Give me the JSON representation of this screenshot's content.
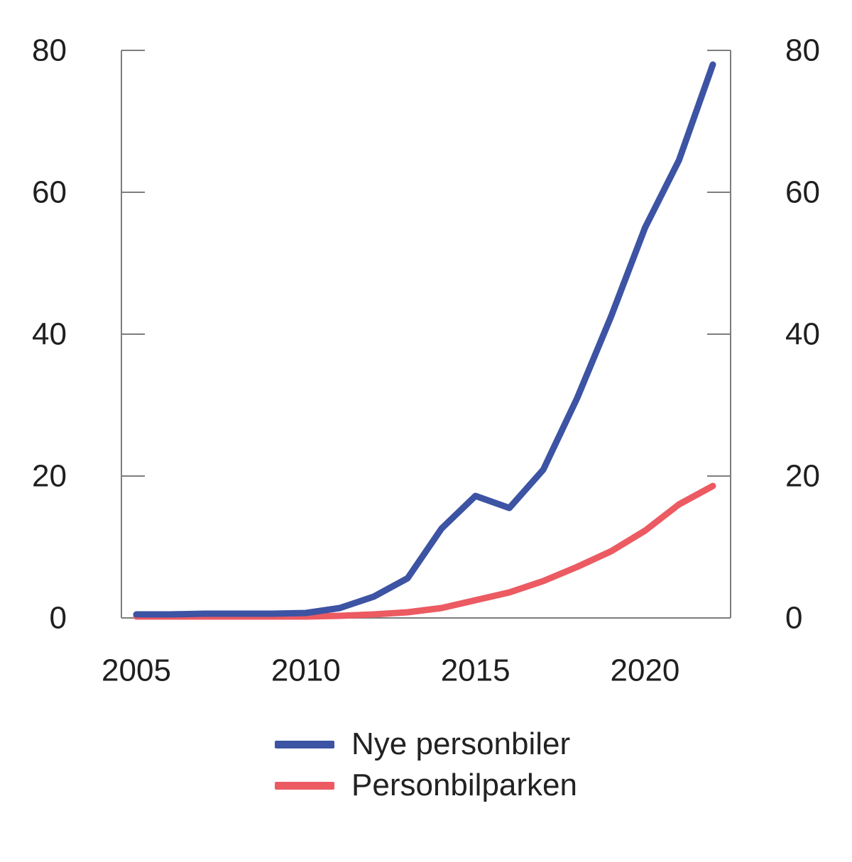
{
  "figure": {
    "background": "#ffffff"
  },
  "chart_data": {
    "type": "line",
    "title": "",
    "xlabel": "",
    "ylabel": "",
    "x": [
      2005,
      2006,
      2007,
      2008,
      2009,
      2010,
      2011,
      2012,
      2013,
      2014,
      2015,
      2016,
      2017,
      2018,
      2019,
      2020,
      2021,
      2022
    ],
    "series": [
      {
        "name": "Nye personbiler",
        "color": "#3D53A3",
        "values": [
          0.5,
          0.5,
          0.6,
          0.6,
          0.6,
          0.7,
          1.4,
          3.0,
          5.6,
          12.6,
          17.2,
          15.5,
          20.9,
          31.0,
          42.5,
          55.0,
          64.5,
          78.0
        ]
      },
      {
        "name": "Personbilparken",
        "color": "#EC5A62",
        "values": [
          0.2,
          0.2,
          0.2,
          0.2,
          0.2,
          0.2,
          0.3,
          0.5,
          0.8,
          1.4,
          2.5,
          3.6,
          5.2,
          7.2,
          9.4,
          12.3,
          16.0,
          18.6
        ]
      }
    ],
    "ylim": [
      0,
      80
    ],
    "yticks_left": [
      0,
      20,
      40,
      60,
      80
    ],
    "yticks_right": [
      0,
      20,
      40,
      60,
      80
    ],
    "xticks": [
      2005,
      2010,
      2015,
      2020
    ],
    "grid": false,
    "legend_position": "bottom-center",
    "axis_color": "#7d7d7d",
    "tick_label_color": "#1f1f1f",
    "line_width": 9
  }
}
